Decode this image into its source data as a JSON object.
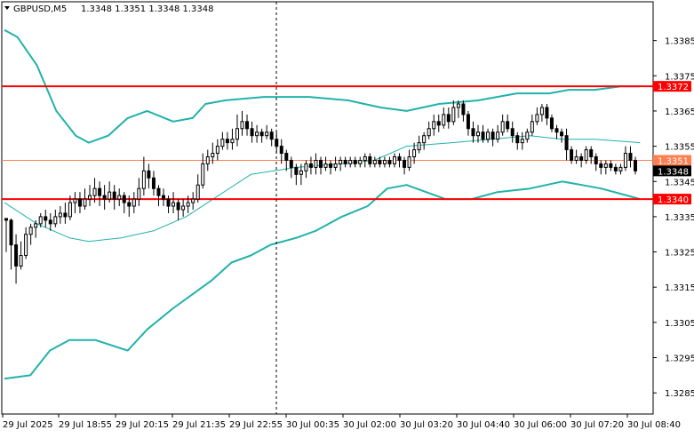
{
  "header": {
    "symbol": "GBPUSD,M5",
    "quote": "1.3348 1.3351 1.3348 1.3348",
    "menu_icon": "triangle-down-icon"
  },
  "colors": {
    "background": "#ffffff",
    "border": "#000000",
    "candle": "#000000",
    "bollinger": "#20b2aa",
    "level_line": "#ff0000",
    "current_line": "#ff7f50",
    "crosshair": "#000000"
  },
  "chart_data": {
    "type": "candlestick",
    "symbol": "GBPUSD",
    "timeframe": "M5",
    "ylim": [
      1.3279,
      1.3396
    ],
    "y_ticks": [
      "1.3385",
      "1.3375",
      "1.3365",
      "1.3355",
      "1.3345",
      "1.3335",
      "1.3325",
      "1.3315",
      "1.3305",
      "1.3295",
      "1.3285"
    ],
    "x_labels": [
      "29 Jul 2025",
      "29 Jul 18:55",
      "29 Jul 20:15",
      "29 Jul 21:35",
      "29 Jul 22:55",
      "30 Jul 00:35",
      "30 Jul 02:00",
      "30 Jul 03:20",
      "30 Jul 04:40",
      "30 Jul 06:00",
      "30 Jul 07:20",
      "30 Jul 08:40"
    ],
    "horizontal_levels": [
      {
        "value": 1.3372,
        "label": "1.3372",
        "style": "red-thick"
      },
      {
        "value": 1.3351,
        "label": "1.3351",
        "style": "coral-thin"
      },
      {
        "value": 1.334,
        "label": "1.3340",
        "style": "red-thick"
      }
    ],
    "current_price": {
      "value": 1.3348,
      "label": "1.3348"
    },
    "candles": [
      [
        1.33345,
        1.3334,
        1.33345,
        1.3325
      ],
      [
        1.3334,
        1.3327,
        1.33345,
        1.332
      ],
      [
        1.3327,
        1.3321,
        1.333,
        1.3316
      ],
      [
        1.3321,
        1.3324,
        1.3328,
        1.332
      ],
      [
        1.3324,
        1.333,
        1.3332,
        1.3323
      ],
      [
        1.333,
        1.3332,
        1.3333,
        1.3327
      ],
      [
        1.3332,
        1.3333,
        1.3334,
        1.3329
      ],
      [
        1.3333,
        1.3335,
        1.3336,
        1.3332
      ],
      [
        1.3335,
        1.3334,
        1.3337,
        1.3332
      ],
      [
        1.3334,
        1.3333,
        1.3336,
        1.3331
      ],
      [
        1.3333,
        1.3335,
        1.3337,
        1.3332
      ],
      [
        1.3335,
        1.3336,
        1.3338,
        1.3333
      ],
      [
        1.3336,
        1.3335,
        1.3339,
        1.3333
      ],
      [
        1.3335,
        1.3339,
        1.3341,
        1.3334
      ],
      [
        1.3339,
        1.334,
        1.3342,
        1.3336
      ],
      [
        1.334,
        1.3338,
        1.3342,
        1.3336
      ],
      [
        1.3338,
        1.334,
        1.3343,
        1.3337
      ],
      [
        1.334,
        1.3341,
        1.3344,
        1.3338
      ],
      [
        1.3341,
        1.3343,
        1.3346,
        1.3339
      ],
      [
        1.3343,
        1.3341,
        1.3345,
        1.3338
      ],
      [
        1.3341,
        1.334,
        1.3344,
        1.3337
      ],
      [
        1.334,
        1.3342,
        1.3345,
        1.3339
      ],
      [
        1.3342,
        1.334,
        1.3344,
        1.3337
      ],
      [
        1.334,
        1.3341,
        1.3343,
        1.3338
      ],
      [
        1.3341,
        1.3339,
        1.3342,
        1.3336
      ],
      [
        1.3339,
        1.3338,
        1.3341,
        1.3335
      ],
      [
        1.3338,
        1.334,
        1.3342,
        1.3336
      ],
      [
        1.334,
        1.3343,
        1.3346,
        1.3338
      ],
      [
        1.3343,
        1.3348,
        1.3352,
        1.3341
      ],
      [
        1.3348,
        1.3346,
        1.335,
        1.3343
      ],
      [
        1.3346,
        1.3343,
        1.3348,
        1.3341
      ],
      [
        1.3343,
        1.3341,
        1.3344,
        1.3338
      ],
      [
        1.3341,
        1.334,
        1.3343,
        1.3338
      ],
      [
        1.334,
        1.3338,
        1.3341,
        1.3336
      ],
      [
        1.3338,
        1.3339,
        1.3342,
        1.3336
      ],
      [
        1.3339,
        1.3337,
        1.334,
        1.3334
      ],
      [
        1.3337,
        1.3338,
        1.334,
        1.3335
      ],
      [
        1.3338,
        1.3339,
        1.3341,
        1.3336
      ],
      [
        1.3339,
        1.334,
        1.3342,
        1.3337
      ],
      [
        1.334,
        1.3344,
        1.3347,
        1.3339
      ],
      [
        1.3344,
        1.335,
        1.3353,
        1.3343
      ],
      [
        1.335,
        1.3352,
        1.3354,
        1.3348
      ],
      [
        1.3352,
        1.3353,
        1.3356,
        1.335
      ],
      [
        1.3353,
        1.3355,
        1.3357,
        1.3351
      ],
      [
        1.3355,
        1.3357,
        1.3359,
        1.3354
      ],
      [
        1.3357,
        1.3356,
        1.3359,
        1.3354
      ],
      [
        1.3356,
        1.3357,
        1.336,
        1.3354
      ],
      [
        1.3357,
        1.336,
        1.3364,
        1.3355
      ],
      [
        1.336,
        1.3362,
        1.3365,
        1.3358
      ],
      [
        1.3362,
        1.336,
        1.3364,
        1.3358
      ],
      [
        1.336,
        1.3358,
        1.3362,
        1.3356
      ],
      [
        1.3358,
        1.3359,
        1.3361,
        1.3356
      ],
      [
        1.3359,
        1.3358,
        1.336,
        1.3356
      ],
      [
        1.3358,
        1.3359,
        1.3361,
        1.3357
      ],
      [
        1.3359,
        1.3357,
        1.336,
        1.3355
      ],
      [
        1.3357,
        1.3355,
        1.3359,
        1.3353
      ],
      [
        1.3355,
        1.3353,
        1.3357,
        1.335
      ],
      [
        1.3353,
        1.3351,
        1.3354,
        1.3348
      ],
      [
        1.3351,
        1.3349,
        1.3352,
        1.3346
      ],
      [
        1.3349,
        1.3347,
        1.335,
        1.3344
      ],
      [
        1.3347,
        1.3348,
        1.335,
        1.3344
      ],
      [
        1.3348,
        1.335,
        1.3351,
        1.3346
      ],
      [
        1.335,
        1.3349,
        1.3352,
        1.3347
      ],
      [
        1.3349,
        1.3351,
        1.3353,
        1.3347
      ],
      [
        1.3351,
        1.3349,
        1.3352,
        1.3347
      ],
      [
        1.3349,
        1.335,
        1.3352,
        1.3348
      ],
      [
        1.335,
        1.3349,
        1.3351,
        1.3347
      ],
      [
        1.3349,
        1.335,
        1.3352,
        1.3348
      ],
      [
        1.335,
        1.3351,
        1.3352,
        1.3348
      ],
      [
        1.3351,
        1.335,
        1.3352,
        1.3349
      ],
      [
        1.335,
        1.3351,
        1.3352,
        1.3349
      ],
      [
        1.3351,
        1.335,
        1.3352,
        1.3349
      ],
      [
        1.335,
        1.3351,
        1.3352,
        1.3349
      ],
      [
        1.3351,
        1.3352,
        1.3353,
        1.3349
      ],
      [
        1.3352,
        1.335,
        1.3353,
        1.3349
      ],
      [
        1.335,
        1.3351,
        1.3352,
        1.3349
      ],
      [
        1.3351,
        1.335,
        1.3352,
        1.3349
      ],
      [
        1.335,
        1.3351,
        1.3352,
        1.3349
      ],
      [
        1.3351,
        1.335,
        1.3352,
        1.3349
      ],
      [
        1.335,
        1.3352,
        1.3353,
        1.3349
      ],
      [
        1.3352,
        1.3351,
        1.3353,
        1.3349
      ],
      [
        1.3351,
        1.3349,
        1.3352,
        1.3347
      ],
      [
        1.3349,
        1.3352,
        1.3354,
        1.3348
      ],
      [
        1.3352,
        1.3354,
        1.3356,
        1.335
      ],
      [
        1.3354,
        1.3356,
        1.3358,
        1.3353
      ],
      [
        1.3356,
        1.3358,
        1.3359,
        1.3354
      ],
      [
        1.3358,
        1.336,
        1.3362,
        1.3357
      ],
      [
        1.336,
        1.3362,
        1.3364,
        1.3358
      ],
      [
        1.3362,
        1.3361,
        1.3364,
        1.3359
      ],
      [
        1.3361,
        1.3364,
        1.3366,
        1.336
      ],
      [
        1.3364,
        1.3362,
        1.3366,
        1.336
      ],
      [
        1.3362,
        1.3366,
        1.3368,
        1.3361
      ],
      [
        1.3366,
        1.3367,
        1.3368,
        1.3363
      ],
      [
        1.3367,
        1.3364,
        1.3368,
        1.3362
      ],
      [
        1.3364,
        1.336,
        1.3365,
        1.3358
      ],
      [
        1.336,
        1.3358,
        1.3362,
        1.3356
      ],
      [
        1.3358,
        1.3359,
        1.3361,
        1.3356
      ],
      [
        1.3359,
        1.3357,
        1.3361,
        1.3356
      ],
      [
        1.3357,
        1.3359,
        1.336,
        1.3356
      ],
      [
        1.3359,
        1.3357,
        1.336,
        1.3355
      ],
      [
        1.3357,
        1.3359,
        1.3361,
        1.3356
      ],
      [
        1.3359,
        1.3362,
        1.3364,
        1.3358
      ],
      [
        1.3362,
        1.336,
        1.3364,
        1.3359
      ],
      [
        1.336,
        1.3358,
        1.3362,
        1.3356
      ],
      [
        1.3358,
        1.3356,
        1.3359,
        1.3354
      ],
      [
        1.3356,
        1.3357,
        1.3359,
        1.3354
      ],
      [
        1.3357,
        1.3359,
        1.336,
        1.3356
      ],
      [
        1.3359,
        1.3362,
        1.3364,
        1.3358
      ],
      [
        1.3362,
        1.3364,
        1.3366,
        1.3361
      ],
      [
        1.3364,
        1.3366,
        1.3367,
        1.3362
      ],
      [
        1.3366,
        1.3363,
        1.3367,
        1.3361
      ],
      [
        1.3363,
        1.336,
        1.3364,
        1.3359
      ],
      [
        1.336,
        1.3359,
        1.3361,
        1.3357
      ],
      [
        1.3359,
        1.3358,
        1.336,
        1.3356
      ],
      [
        1.3358,
        1.3354,
        1.336,
        1.3351
      ],
      [
        1.3354,
        1.3351,
        1.3355,
        1.335
      ],
      [
        1.3351,
        1.3352,
        1.3354,
        1.335
      ],
      [
        1.3352,
        1.3351,
        1.3353,
        1.3349
      ],
      [
        1.3351,
        1.3354,
        1.3355,
        1.335
      ],
      [
        1.3354,
        1.3352,
        1.3355,
        1.335
      ],
      [
        1.3352,
        1.335,
        1.3353,
        1.3348
      ],
      [
        1.335,
        1.3349,
        1.3351,
        1.3347
      ],
      [
        1.3349,
        1.335,
        1.3351,
        1.3347
      ],
      [
        1.335,
        1.3349,
        1.3351,
        1.3348
      ],
      [
        1.3349,
        1.3348,
        1.335,
        1.3347
      ],
      [
        1.3348,
        1.3349,
        1.335,
        1.3347
      ],
      [
        1.3349,
        1.3353,
        1.3355,
        1.3348
      ],
      [
        1.3353,
        1.3351,
        1.3355,
        1.3349
      ],
      [
        1.3351,
        1.3348,
        1.3352,
        1.3347
      ]
    ],
    "bb_upper": [
      [
        0,
        1.3388
      ],
      [
        0.02,
        1.3386
      ],
      [
        0.05,
        1.3378
      ],
      [
        0.08,
        1.3365
      ],
      [
        0.11,
        1.3358
      ],
      [
        0.13,
        1.3356
      ],
      [
        0.16,
        1.3358
      ],
      [
        0.19,
        1.3363
      ],
      [
        0.22,
        1.3365
      ],
      [
        0.26,
        1.3362
      ],
      [
        0.29,
        1.3363
      ],
      [
        0.31,
        1.3367
      ],
      [
        0.34,
        1.3368
      ],
      [
        0.4,
        1.3369
      ],
      [
        0.47,
        1.3369
      ],
      [
        0.53,
        1.3368
      ],
      [
        0.58,
        1.3366
      ],
      [
        0.62,
        1.3365
      ],
      [
        0.67,
        1.3367
      ],
      [
        0.73,
        1.3368
      ],
      [
        0.79,
        1.337
      ],
      [
        0.84,
        1.337
      ],
      [
        0.87,
        1.3371
      ],
      [
        0.91,
        1.3371
      ],
      [
        0.95,
        1.3372
      ],
      [
        0.98,
        1.3372
      ]
    ],
    "bb_middle": [
      [
        0,
        1.3339
      ],
      [
        0.05,
        1.3333
      ],
      [
        0.1,
        1.3329
      ],
      [
        0.13,
        1.3328
      ],
      [
        0.18,
        1.3329
      ],
      [
        0.23,
        1.3331
      ],
      [
        0.28,
        1.3335
      ],
      [
        0.33,
        1.3341
      ],
      [
        0.38,
        1.3347
      ],
      [
        0.45,
        1.3349
      ],
      [
        0.52,
        1.335
      ],
      [
        0.57,
        1.3351
      ],
      [
        0.62,
        1.3355
      ],
      [
        0.69,
        1.3356
      ],
      [
        0.75,
        1.3357
      ],
      [
        0.81,
        1.3358
      ],
      [
        0.86,
        1.3357
      ],
      [
        0.91,
        1.3357
      ],
      [
        0.98,
        1.3356
      ]
    ],
    "bb_lower": [
      [
        0,
        1.3289
      ],
      [
        0.04,
        1.329
      ],
      [
        0.07,
        1.3297
      ],
      [
        0.1,
        1.33
      ],
      [
        0.14,
        1.33
      ],
      [
        0.19,
        1.3297
      ],
      [
        0.22,
        1.3303
      ],
      [
        0.26,
        1.3309
      ],
      [
        0.29,
        1.3313
      ],
      [
        0.32,
        1.3317
      ],
      [
        0.35,
        1.3322
      ],
      [
        0.38,
        1.3324
      ],
      [
        0.41,
        1.3327
      ],
      [
        0.45,
        1.3329
      ],
      [
        0.48,
        1.3331
      ],
      [
        0.52,
        1.3335
      ],
      [
        0.56,
        1.3338
      ],
      [
        0.59,
        1.3343
      ],
      [
        0.62,
        1.3344
      ],
      [
        0.65,
        1.3342
      ],
      [
        0.68,
        1.334
      ],
      [
        0.72,
        1.334
      ],
      [
        0.76,
        1.3342
      ],
      [
        0.81,
        1.3343
      ],
      [
        0.86,
        1.3345
      ],
      [
        0.89,
        1.3344
      ],
      [
        0.92,
        1.3343
      ],
      [
        0.96,
        1.3341
      ],
      [
        0.98,
        1.334
      ]
    ]
  }
}
